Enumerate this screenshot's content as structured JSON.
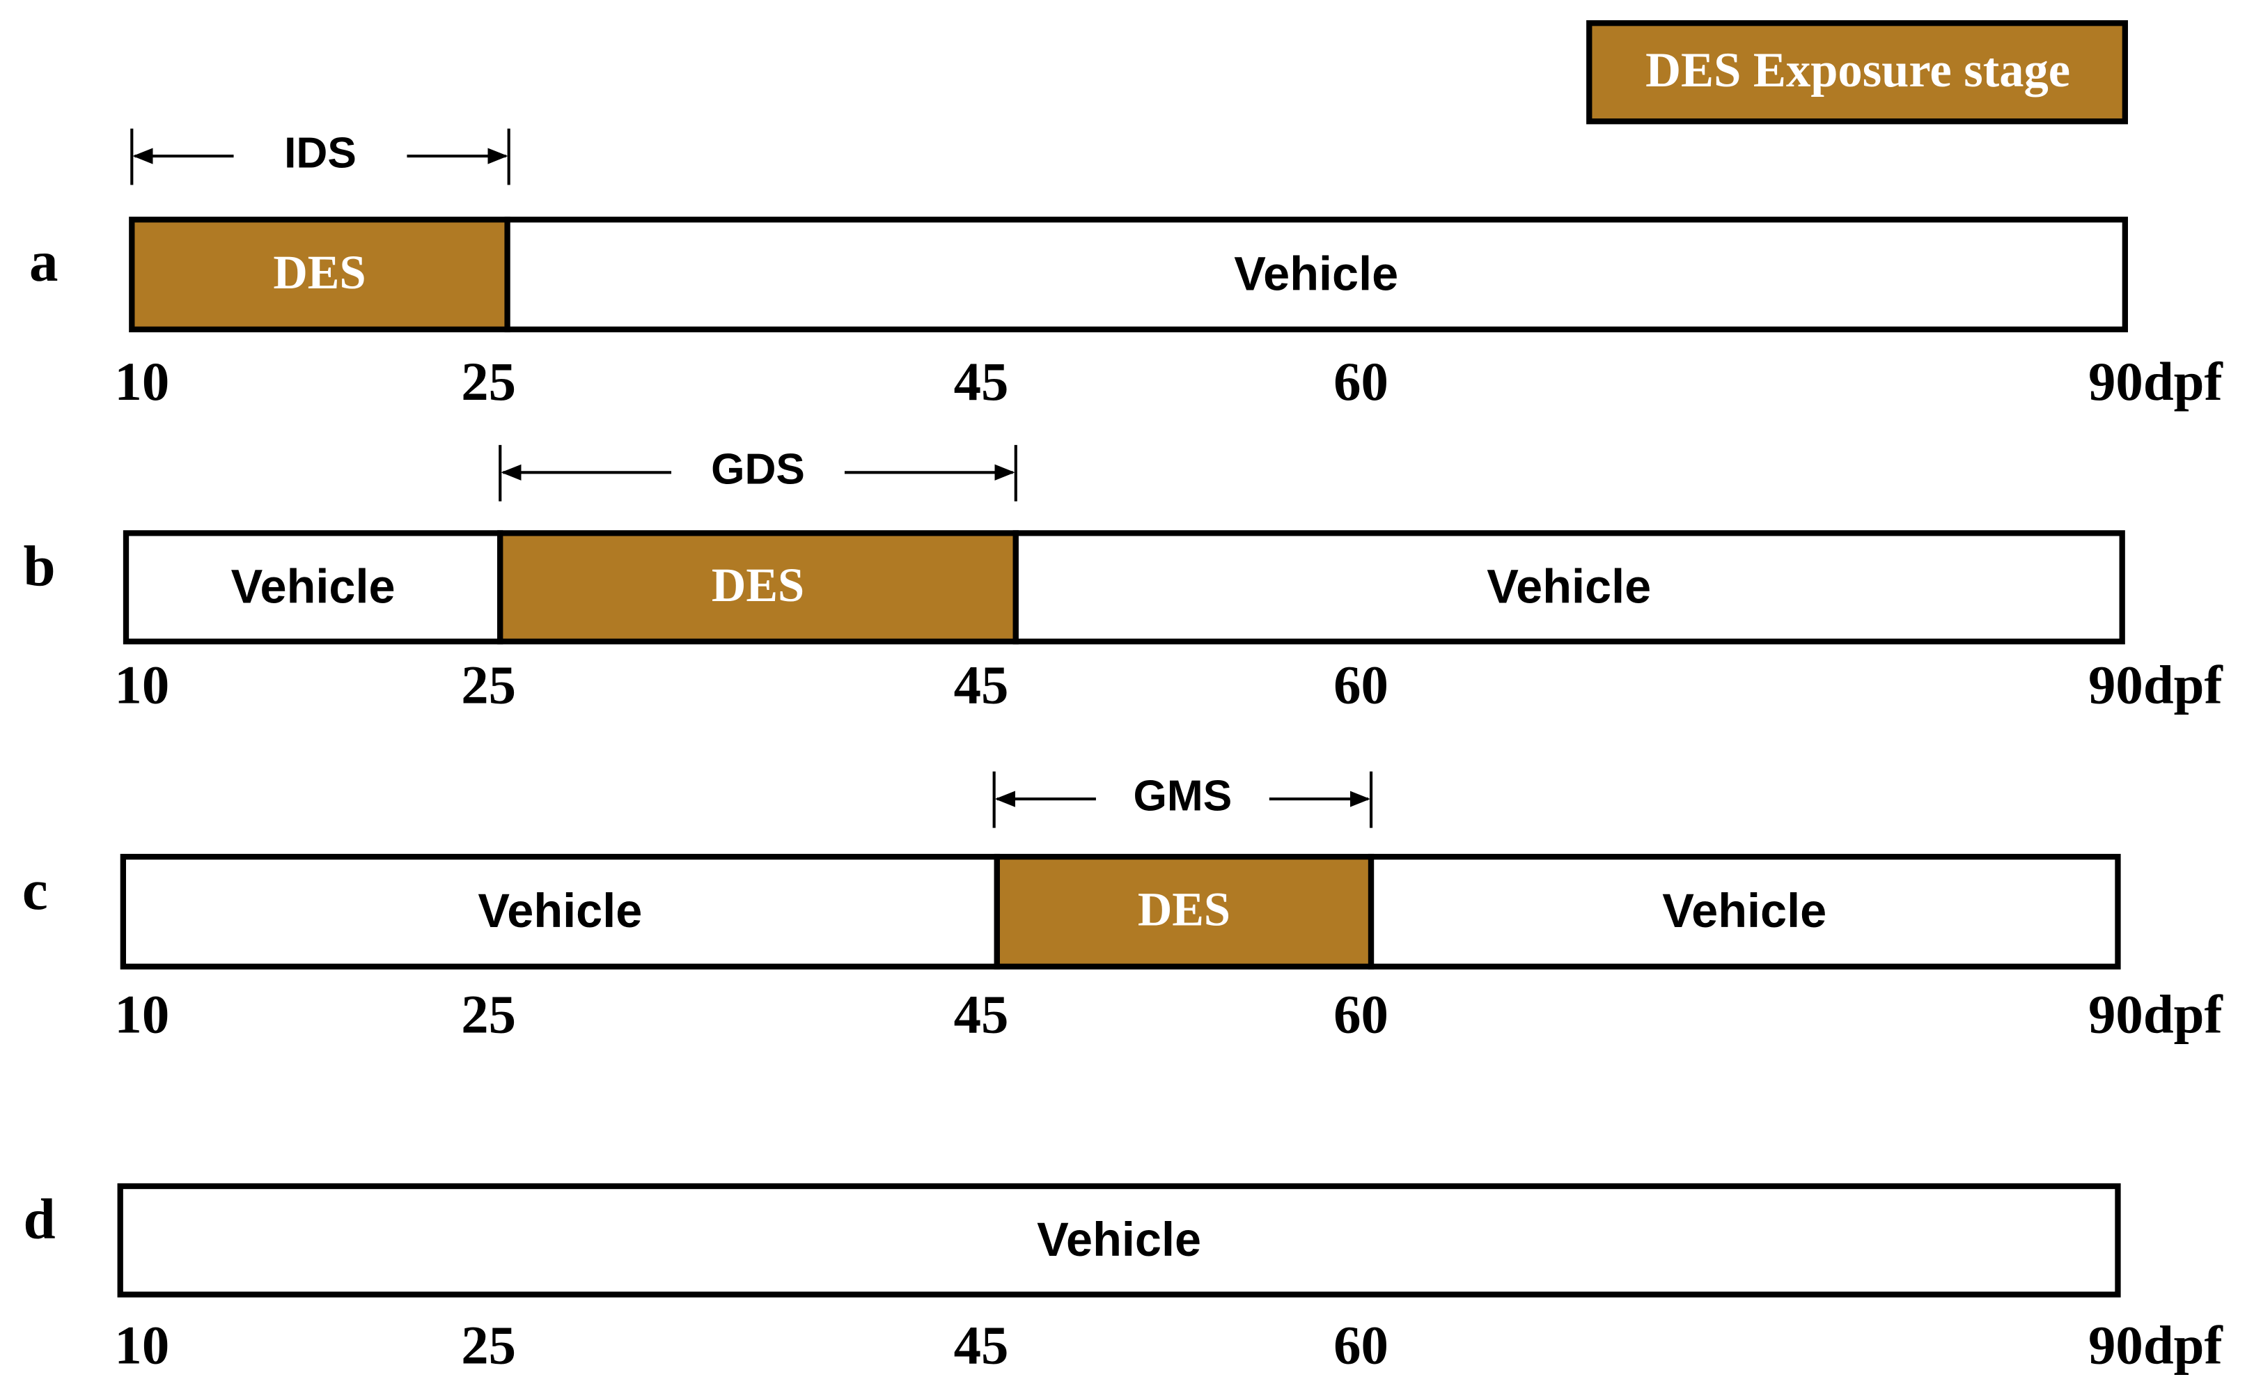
{
  "legend": {
    "label": "DES Exposure stage"
  },
  "rows": [
    {
      "letter": "a",
      "stage": "IDS",
      "segments": [
        {
          "label": "DES"
        },
        {
          "label": "Vehicle"
        }
      ],
      "axis_labels": [
        "10",
        "25",
        "45",
        "60",
        "90dpf"
      ]
    },
    {
      "letter": "b",
      "stage": "GDS",
      "segments": [
        {
          "label": "Vehicle"
        },
        {
          "label": "DES"
        },
        {
          "label": "Vehicle"
        }
      ],
      "axis_labels": [
        "10",
        "25",
        "45",
        "60",
        "90dpf"
      ]
    },
    {
      "letter": "c",
      "stage": "GMS",
      "segments": [
        {
          "label": "Vehicle"
        },
        {
          "label": "DES"
        },
        {
          "label": "Vehicle"
        }
      ],
      "axis_labels": [
        "10",
        "25",
        "45",
        "60",
        "90dpf"
      ]
    },
    {
      "letter": "d",
      "segments": [
        {
          "label": "Vehicle"
        }
      ],
      "axis_labels": [
        "10",
        "25",
        "45",
        "60",
        "90dpf"
      ]
    }
  ]
}
